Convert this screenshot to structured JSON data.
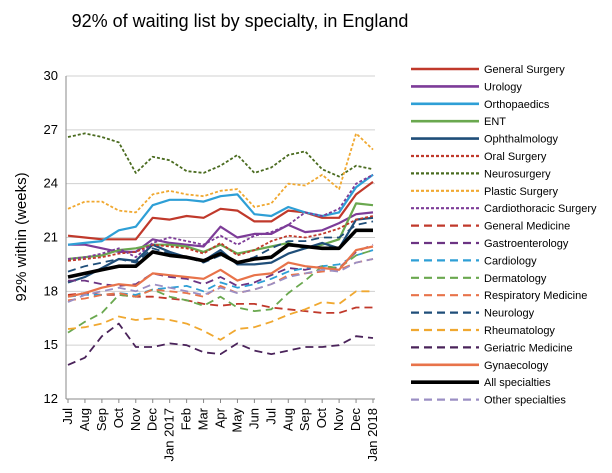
{
  "chart_data": {
    "type": "line",
    "title": "92% of waiting list by specialty, in England",
    "xlabel": "",
    "ylabel": "92% within (weeks)",
    "ylim": [
      12,
      30
    ],
    "yticks": [
      12,
      15,
      18,
      21,
      24,
      27,
      30
    ],
    "grid": "horizontal",
    "legend_position": "right",
    "x": [
      "Jul",
      "Aug",
      "Sep",
      "Oct",
      "Nov",
      "Dec",
      "Jan 2017",
      "Feb",
      "Mar",
      "Apr",
      "May",
      "Jun",
      "Jul",
      "Aug",
      "Sep",
      "Oct",
      "Nov",
      "Dec",
      "Jan 2018"
    ],
    "series": [
      {
        "name": "General Surgery",
        "color": "#c0392b",
        "dash": "solid",
        "width": 2.2,
        "values": [
          21.1,
          21.0,
          20.9,
          20.9,
          20.9,
          22.1,
          22.0,
          22.2,
          22.1,
          22.6,
          22.5,
          21.9,
          21.9,
          22.5,
          22.4,
          22.1,
          22.1,
          23.4,
          24.1
        ]
      },
      {
        "name": "Urology",
        "color": "#7d3c98",
        "dash": "solid",
        "width": 2.2,
        "values": [
          20.6,
          20.6,
          20.4,
          20.2,
          20.2,
          20.9,
          20.7,
          20.6,
          20.5,
          21.6,
          21.0,
          21.2,
          21.2,
          21.7,
          21.3,
          21.4,
          21.8,
          22.3,
          22.4
        ]
      },
      {
        "name": "Orthopaedics",
        "color": "#2e9fd6",
        "dash": "solid",
        "width": 2.2,
        "values": [
          20.6,
          20.7,
          20.8,
          21.4,
          21.6,
          22.8,
          23.1,
          23.1,
          23.0,
          23.3,
          23.4,
          22.3,
          22.2,
          22.7,
          22.4,
          22.2,
          22.4,
          23.8,
          24.5
        ]
      },
      {
        "name": "ENT",
        "color": "#6aa84f",
        "dash": "solid",
        "width": 2.2,
        "values": [
          19.8,
          19.9,
          20.0,
          20.3,
          20.4,
          20.6,
          20.6,
          20.5,
          20.2,
          20.6,
          20.1,
          20.3,
          20.5,
          20.7,
          20.4,
          20.6,
          20.9,
          22.9,
          22.8
        ]
      },
      {
        "name": "Ophthalmology",
        "color": "#1f4e79",
        "dash": "solid",
        "width": 2.2,
        "values": [
          18.5,
          18.8,
          19.3,
          19.8,
          19.7,
          20.6,
          20.2,
          19.9,
          19.7,
          20.3,
          19.5,
          19.5,
          19.6,
          20.1,
          20.4,
          20.7,
          20.4,
          22.0,
          22.1
        ]
      },
      {
        "name": "Oral Surgery",
        "color": "#c0392b",
        "dash": "3,2",
        "width": 1.8,
        "values": [
          19.7,
          19.8,
          19.9,
          20.1,
          20.2,
          20.6,
          20.5,
          20.4,
          20.1,
          20.7,
          20.0,
          20.3,
          20.8,
          21.1,
          21.0,
          21.2,
          21.5,
          22.0,
          22.2
        ]
      },
      {
        "name": "Neurosurgery",
        "color": "#4a6b1f",
        "dash": "3,2",
        "width": 1.8,
        "values": [
          26.6,
          26.8,
          26.6,
          26.3,
          24.6,
          25.5,
          25.3,
          24.7,
          24.6,
          25.0,
          25.6,
          24.6,
          24.9,
          25.6,
          25.8,
          24.8,
          24.4,
          25.0,
          24.8
        ]
      },
      {
        "name": "Plastic Surgery",
        "color": "#f0a830",
        "dash": "3,2",
        "width": 1.8,
        "values": [
          22.6,
          23.0,
          23.0,
          22.5,
          22.4,
          23.4,
          23.6,
          23.4,
          23.3,
          23.6,
          23.7,
          22.7,
          22.9,
          24.0,
          23.9,
          24.5,
          23.7,
          26.8,
          25.9
        ]
      },
      {
        "name": "Cardiothoracic Surgery",
        "color": "#7d3c98",
        "dash": "3,2",
        "width": 1.8,
        "values": [
          19.8,
          19.9,
          20.1,
          20.4,
          19.9,
          20.7,
          21.0,
          20.8,
          20.6,
          21.1,
          20.6,
          21.1,
          21.3,
          21.7,
          22.4,
          22.2,
          22.6,
          24.0,
          24.5
        ]
      },
      {
        "name": "General Medicine",
        "color": "#c0392b",
        "dash": "8,5",
        "width": 1.8,
        "values": [
          17.8,
          17.9,
          17.8,
          17.8,
          17.7,
          17.7,
          17.6,
          17.5,
          17.3,
          17.2,
          17.3,
          17.3,
          17.1,
          17.0,
          16.9,
          16.8,
          16.8,
          17.1,
          17.1
        ]
      },
      {
        "name": "Gastroenterology",
        "color": "#6c3483",
        "dash": "8,5",
        "width": 1.8,
        "values": [
          18.6,
          18.6,
          18.4,
          18.3,
          18.4,
          19.0,
          18.8,
          18.7,
          18.4,
          18.8,
          18.3,
          18.5,
          18.9,
          19.3,
          19.2,
          19.4,
          19.3,
          20.2,
          20.6
        ]
      },
      {
        "name": "Cardiology",
        "color": "#2e9fd6",
        "dash": "8,5",
        "width": 1.8,
        "values": [
          17.7,
          17.8,
          17.8,
          17.9,
          17.8,
          18.1,
          18.2,
          18.3,
          18.0,
          18.5,
          18.2,
          18.4,
          18.7,
          19.1,
          19.3,
          19.4,
          19.5,
          20.0,
          20.3
        ]
      },
      {
        "name": "Dermatology",
        "color": "#6aa84f",
        "dash": "8,5",
        "width": 1.8,
        "values": [
          15.7,
          16.3,
          16.8,
          17.8,
          17.7,
          18.1,
          17.7,
          17.5,
          17.2,
          17.7,
          17.1,
          16.9,
          17.0,
          17.9,
          18.6,
          19.4,
          19.3,
          20.0,
          20.3
        ]
      },
      {
        "name": "Respiratory Medicine",
        "color": "#e8734a",
        "dash": "8,5",
        "width": 1.8,
        "values": [
          17.5,
          17.6,
          17.8,
          17.9,
          17.7,
          18.1,
          18.0,
          17.9,
          17.7,
          18.3,
          17.9,
          18.1,
          18.4,
          18.9,
          19.0,
          19.1,
          19.2,
          19.6,
          19.8
        ]
      },
      {
        "name": "Neurology",
        "color": "#1f4e79",
        "dash": "8,5",
        "width": 1.8,
        "values": [
          19.1,
          19.4,
          19.6,
          19.8,
          19.6,
          20.4,
          20.1,
          19.9,
          19.6,
          20.0,
          19.6,
          19.9,
          20.4,
          20.8,
          20.8,
          21.0,
          21.0,
          21.7,
          21.9
        ]
      },
      {
        "name": "Rheumatology",
        "color": "#f0a830",
        "dash": "8,5",
        "width": 1.8,
        "values": [
          15.9,
          16.0,
          16.2,
          16.6,
          16.4,
          16.5,
          16.4,
          16.2,
          15.8,
          15.3,
          15.9,
          16.0,
          16.3,
          16.7,
          17.0,
          17.4,
          17.3,
          18.0,
          18.0
        ]
      },
      {
        "name": "Geriatric Medicine",
        "color": "#4a235a",
        "dash": "8,5",
        "width": 1.8,
        "values": [
          13.9,
          14.3,
          15.5,
          16.2,
          14.9,
          14.9,
          15.1,
          15.0,
          14.6,
          14.5,
          15.1,
          14.7,
          14.5,
          14.7,
          14.9,
          14.9,
          15.0,
          15.5,
          15.4
        ]
      },
      {
        "name": "Gynaecology",
        "color": "#e8734a",
        "dash": "solid",
        "width": 2.2,
        "values": [
          17.7,
          17.9,
          18.2,
          18.4,
          18.3,
          19.0,
          18.9,
          18.8,
          18.7,
          19.2,
          18.6,
          18.9,
          19.0,
          19.6,
          19.4,
          19.3,
          19.2,
          20.3,
          20.5
        ]
      },
      {
        "name": "All specialties",
        "color": "#000000",
        "dash": "solid",
        "width": 3.6,
        "values": [
          18.8,
          19.0,
          19.2,
          19.4,
          19.4,
          20.2,
          20.0,
          19.9,
          19.7,
          20.1,
          19.6,
          19.8,
          19.9,
          20.6,
          20.5,
          20.4,
          20.4,
          21.4,
          21.4
        ]
      },
      {
        "name": "Other specialties",
        "color": "#9b8fc4",
        "dash": "8,5",
        "width": 1.8,
        "values": [
          17.4,
          17.8,
          18.0,
          18.2,
          18.0,
          18.4,
          18.2,
          18.0,
          17.8,
          18.2,
          17.9,
          18.1,
          18.4,
          18.8,
          19.0,
          19.2,
          19.1,
          19.6,
          19.8
        ]
      }
    ]
  }
}
